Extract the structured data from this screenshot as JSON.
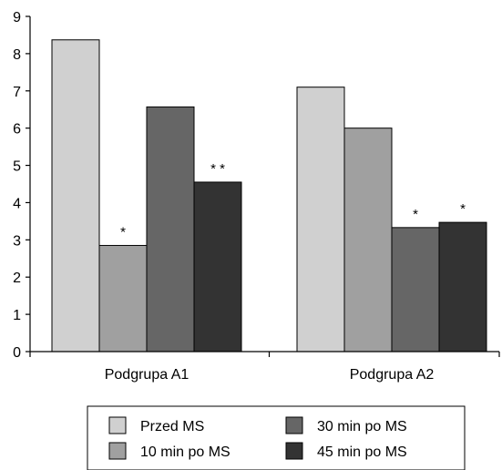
{
  "chart_data": {
    "type": "bar",
    "categories": [
      "Podgrupa A1",
      "Podgrupa A2"
    ],
    "series": [
      {
        "name": "Przed MS",
        "values": [
          8.37,
          7.1
        ],
        "color": "#d0d0d0"
      },
      {
        "name": "10 min po MS",
        "values": [
          2.85,
          6.0
        ],
        "color": "#a0a0a0"
      },
      {
        "name": "30 min po MS",
        "values": [
          6.57,
          3.33
        ],
        "color": "#666666"
      },
      {
        "name": "45 min po MS",
        "values": [
          4.55,
          3.47
        ],
        "color": "#333333"
      }
    ],
    "annotations": [
      {
        "category": 0,
        "series": 1,
        "text": "*"
      },
      {
        "category": 0,
        "series": 3,
        "text": "* *"
      },
      {
        "category": 1,
        "series": 2,
        "text": "*"
      },
      {
        "category": 1,
        "series": 3,
        "text": "*"
      }
    ],
    "yticks": [
      0,
      1,
      2,
      3,
      4,
      5,
      6,
      7,
      8,
      9
    ],
    "ylim": [
      0,
      9
    ],
    "title": "",
    "xlabel": "",
    "ylabel": "",
    "legend_position": "bottom",
    "grid": false
  }
}
